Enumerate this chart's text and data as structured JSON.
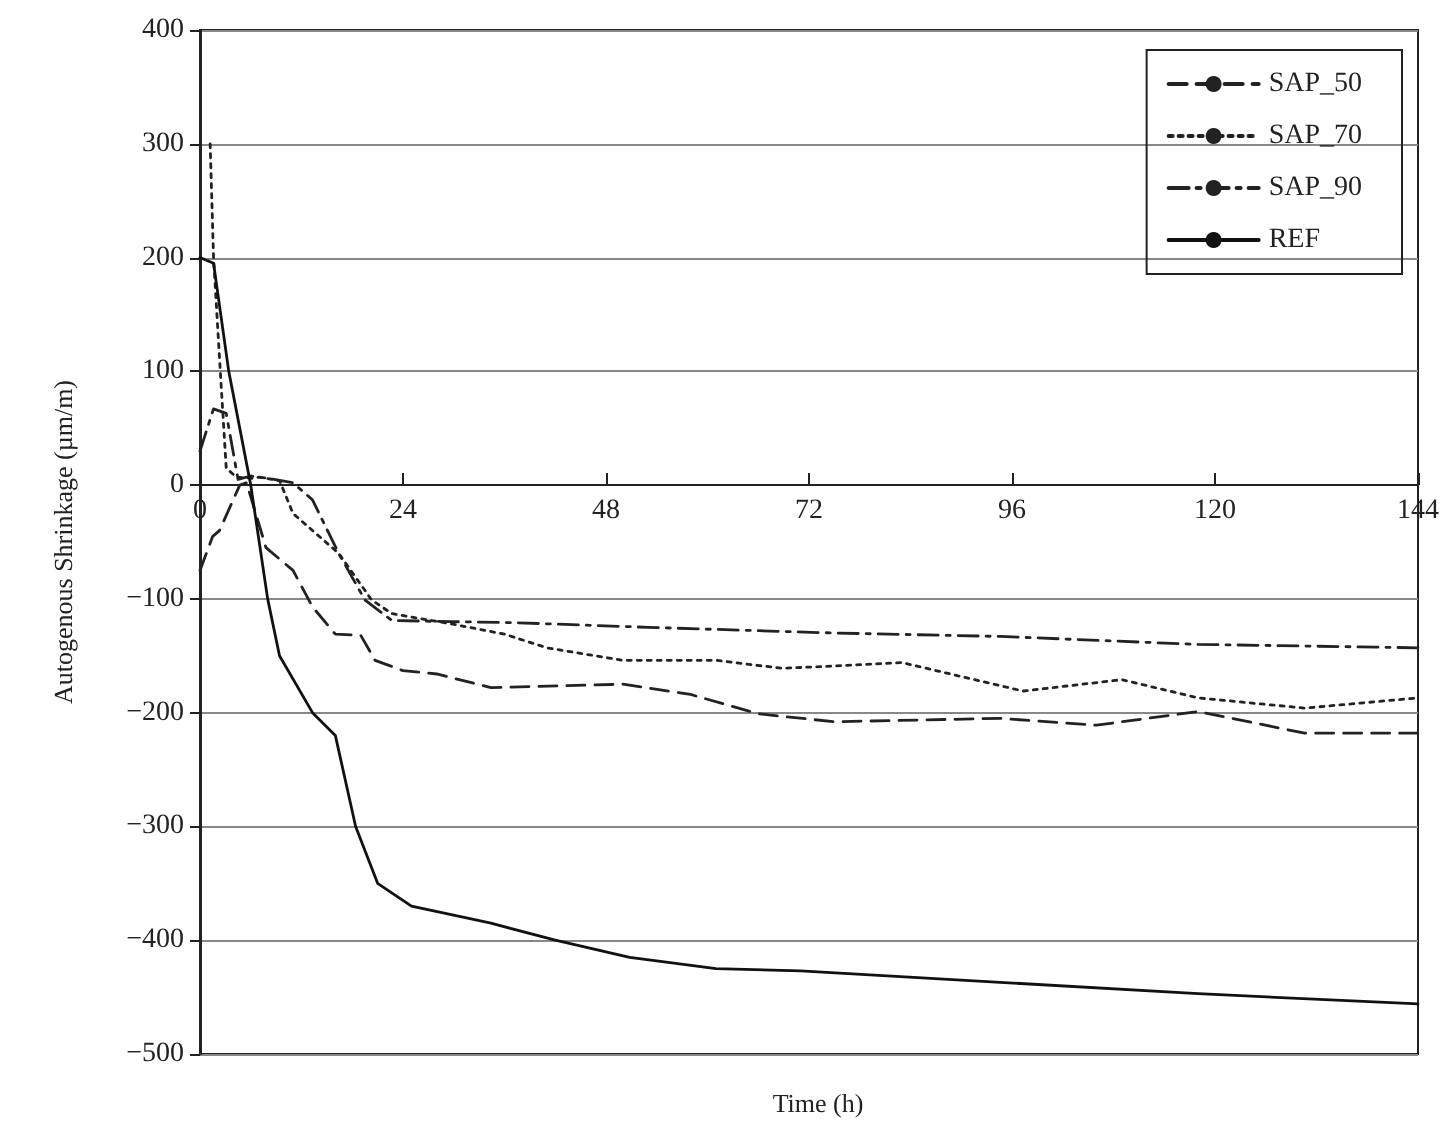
{
  "chart_data": {
    "type": "line",
    "xlabel": "Time (h)",
    "ylabel": "Autogenous Shrinkage (µm/m)",
    "xlim": [
      0,
      144
    ],
    "xticks": [
      0,
      24,
      48,
      72,
      96,
      120,
      144
    ],
    "ylim": [
      -500,
      400
    ],
    "yticks": [
      -500,
      -400,
      -300,
      -200,
      -100,
      0,
      100,
      200,
      300,
      400
    ],
    "grid": "y",
    "legend": "top right",
    "marker": "none",
    "series": [
      {
        "name": "SAP_50",
        "color": "#222222",
        "line_style": "dashed",
        "x": [
          0,
          1.5,
          2.3,
          4.7,
          5.5,
          7.8,
          11,
          13.3,
          16,
          19,
          20.7,
          24,
          28,
          34.4,
          50,
          58,
          66,
          75,
          94.6,
          106,
          118,
          130.6,
          144
        ],
        "values": [
          -75,
          -45,
          -40,
          0,
          2,
          -55,
          -75,
          -107,
          -131,
          -132,
          -154,
          -163,
          -166,
          -178,
          -175,
          -184,
          -201,
          -208,
          -205,
          -211,
          -199,
          -218,
          -218
        ]
      },
      {
        "name": "SAP_70",
        "color": "#222222",
        "line_style": "dotted",
        "x": [
          1.2,
          1.6,
          2.4,
          3.1,
          4.3,
          6.2,
          7,
          9.4,
          11,
          16.4,
          20.3,
          22.7,
          29.7,
          36,
          41,
          50,
          61,
          68.8,
          75,
          83,
          97.3,
          109,
          118,
          130.6,
          144
        ],
        "values": [
          300,
          200,
          100,
          15,
          7,
          6,
          7,
          4,
          -25,
          -60,
          -101,
          -113,
          -122,
          -131,
          -143,
          -154,
          -154,
          -161,
          -159,
          -156,
          -181,
          -171,
          -187,
          -196,
          -187
        ]
      },
      {
        "name": "SAP_90",
        "color": "#222222",
        "line_style": "dashdot",
        "x": [
          0,
          1.6,
          3.1,
          4.5,
          6,
          8,
          11,
          13.3,
          16.4,
          19.5,
          22.7,
          29.7,
          37.5,
          53,
          75,
          94.6,
          118,
          144
        ],
        "values": [
          30,
          67,
          63,
          5,
          8,
          6,
          2,
          -13,
          -60,
          -101,
          -119,
          -120,
          -121,
          -125,
          -130,
          -133,
          -140,
          -143
        ]
      },
      {
        "name": "REF",
        "color": "#111111",
        "line_style": "solid",
        "x": [
          0,
          1.6,
          3.4,
          6,
          8,
          9.4,
          13.3,
          16,
          18.4,
          21,
          25,
          34.4,
          42,
          50.8,
          61,
          71,
          94.6,
          118,
          144
        ],
        "values": [
          200,
          195,
          100,
          0,
          -100,
          -150,
          -200,
          -220,
          -300,
          -350,
          -370,
          -385,
          -400,
          -415,
          -425,
          -427,
          -437,
          -447,
          -456
        ]
      }
    ]
  }
}
